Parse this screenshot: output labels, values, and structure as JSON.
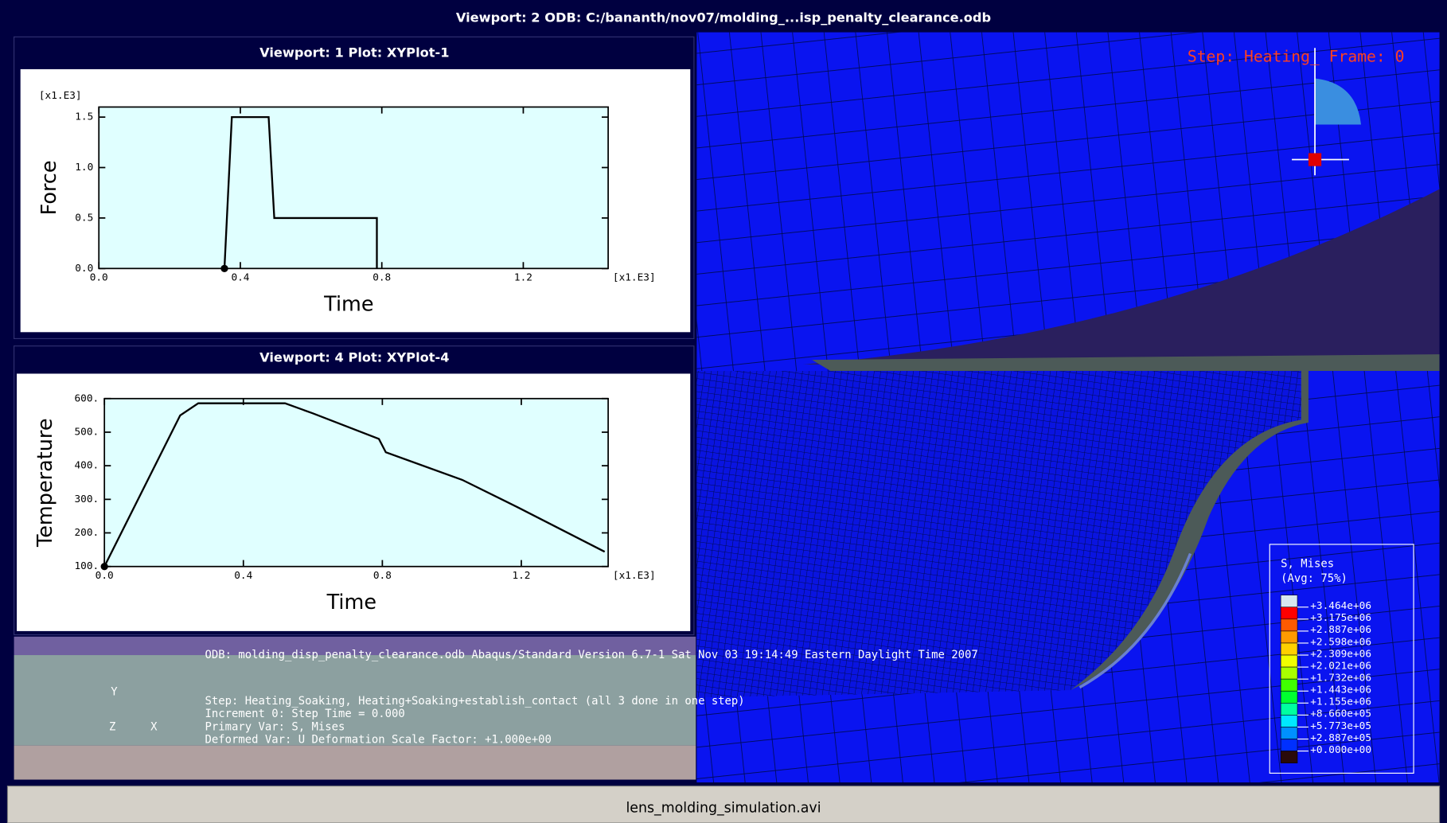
{
  "header": {
    "title": "Viewport: 2     ODB: C:/bananth/nov07/molding_...isp_penalty_clearance.odb"
  },
  "chart_data": [
    {
      "type": "line",
      "title": "Viewport: 1     Plot: XYPlot-1",
      "x_label": "Time",
      "y_label": "Force",
      "x_multiplier": "[x1.E3]",
      "y_multiplier": "[x1.E3]",
      "x": [
        0.355,
        0.376,
        0.48,
        0.496,
        0.786,
        0.786
      ],
      "series": [
        {
          "color": "#000000",
          "values": [
            0,
            1.5,
            1.5,
            0.5,
            0.5,
            0
          ]
        }
      ],
      "xlim": [
        0,
        1.44
      ],
      "ylim": [
        0,
        1.6
      ],
      "xticks": [
        {
          "value": 0,
          "label": "0.0"
        },
        0.4,
        0.8,
        1.2
      ],
      "yticks": [
        {
          "value": 0,
          "label": "0.0"
        },
        0.5,
        {
          "value": 1,
          "label": "1.0"
        },
        1.5
      ]
    },
    {
      "type": "line",
      "title": "Viewport: 4     Plot: XYPlot-4",
      "x_label": "Time",
      "y_label": "Temperature",
      "x_multiplier": "[x1.E3]",
      "x": [
        0,
        0.218,
        0.27,
        0.52,
        0.6,
        0.79,
        0.81,
        1.03,
        1.19,
        1.44
      ],
      "series": [
        {
          "color": "#000000",
          "values": [
            100,
            550,
            586,
            586,
            556,
            480,
            440,
            358,
            276,
            144
          ]
        }
      ],
      "xlim": [
        0,
        1.45
      ],
      "ylim": [
        100,
        600
      ],
      "xticks": [
        {
          "value": 0,
          "label": "0.0"
        },
        0.4,
        0.8,
        1.2
      ],
      "yticks": [
        {
          "value": 100,
          "label": "100."
        },
        {
          "value": 200,
          "label": "200."
        },
        {
          "value": 300,
          "label": "300."
        },
        {
          "value": 400,
          "label": "400."
        },
        {
          "value": 500,
          "label": "500."
        },
        {
          "value": 600,
          "label": "600."
        }
      ]
    }
  ],
  "viewport2": {
    "step_label": "Step: Heating_ Frame: 0"
  },
  "contour_legend": {
    "title": "S, Mises",
    "subtitle": "(Avg: 75%)",
    "labels": [
      "+3.464e+06",
      "+3.175e+06",
      "+2.887e+06",
      "+2.598e+06",
      "+2.309e+06",
      "+2.021e+06",
      "+1.732e+06",
      "+1.443e+06",
      "+1.155e+06",
      "+8.660e+05",
      "+5.773e+05",
      "+2.887e+05",
      "+0.000e+00"
    ],
    "colors": [
      "#d8e8f0",
      "#ff0000",
      "#ff5a00",
      "#ff9a00",
      "#ffd000",
      "#f0ff00",
      "#a8ff00",
      "#40ff00",
      "#00ff30",
      "#00ffa0",
      "#00e8ff",
      "#0090ff",
      "#0030ff",
      "#2a0a0a"
    ]
  },
  "info": {
    "odb_line": "ODB: molding_disp_penalty_clearance.odb    Abaqus/Standard Version 6.7-1    Sat Nov 03 19:14:49 Eastern Daylight Time 2007",
    "step_line": "Step: Heating_Soaking, Heating+Soaking+establish_contact (all 3 done in one step)",
    "increment_line": "Increment      0: Step Time =    0.000",
    "primary_line": "Primary Var: S, Mises",
    "deformed_line": "Deformed Var: U   Deformation Scale Factor: +1.000e+00",
    "triad": [
      "Y",
      "Z",
      "X"
    ]
  },
  "footer": {
    "filename": "lens_molding_simulation.avi"
  }
}
